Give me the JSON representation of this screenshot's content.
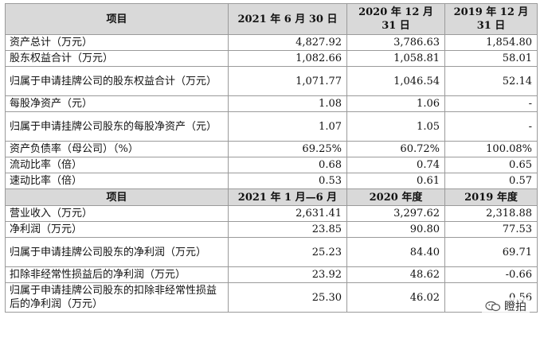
{
  "section1": {
    "headers": [
      "项目",
      "2021 年 6 月 30 日",
      "2020 年 12 月 31 日",
      "2019 年 12 月 31 日"
    ],
    "rows": [
      {
        "label": "资产总计（万元）",
        "v1": "4,827.92",
        "v2": "3,786.63",
        "v3": "1,854.80"
      },
      {
        "label": "股东权益合计（万元）",
        "v1": "1,082.66",
        "v2": "1,058.81",
        "v3": "58.01"
      },
      {
        "label": "归属于申请挂牌公司的股东权益合计（万元）",
        "v1": "1,071.77",
        "v2": "1,046.54",
        "v3": "52.14"
      },
      {
        "label": "每股净资产（元）",
        "v1": "1.08",
        "v2": "1.06",
        "v3": "-"
      },
      {
        "label": "归属于申请挂牌公司股东的每股净资产（元）",
        "v1": "1.07",
        "v2": "1.05",
        "v3": "-"
      },
      {
        "label": "资产负债率（母公司）（%）",
        "v1": "69.25%",
        "v2": "60.72%",
        "v3": "100.08%"
      },
      {
        "label": "流动比率（倍）",
        "v1": "0.68",
        "v2": "0.74",
        "v3": "0.65"
      },
      {
        "label": "速动比率（倍）",
        "v1": "0.53",
        "v2": "0.61",
        "v3": "0.57"
      }
    ]
  },
  "section2": {
    "headers": [
      "项目",
      "2021 年 1 月—6 月",
      "2020 年度",
      "2019 年度"
    ],
    "rows": [
      {
        "label": "营业收入（万元）",
        "v1": "2,631.41",
        "v2": "3,297.62",
        "v3": "2,318.88"
      },
      {
        "label": "净利润（万元）",
        "v1": "23.85",
        "v2": "90.80",
        "v3": "77.53"
      },
      {
        "label": "归属于申请挂牌公司股东的净利润（万元）",
        "v1": "25.23",
        "v2": "84.40",
        "v3": "69.71"
      },
      {
        "label": "扣除非经常性损益后的净利润（万元）",
        "v1": "23.92",
        "v2": "48.62",
        "v3": "-0.66"
      },
      {
        "label": "归属于申请挂牌公司股东的扣除非经常性损益后的净利润（万元）",
        "v1": "25.30",
        "v2": "46.02",
        "v3": "0.56"
      }
    ]
  },
  "watermark": {
    "text": "瞪拍",
    "icon": "wechat-icon"
  }
}
